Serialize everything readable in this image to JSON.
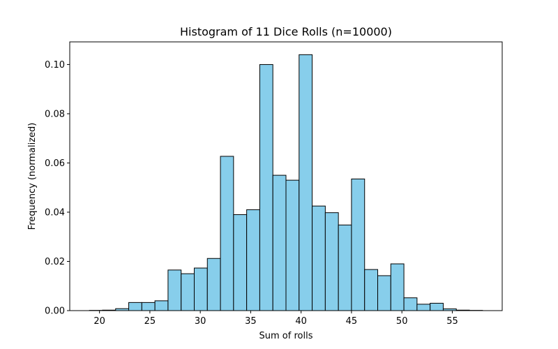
{
  "chart_data": {
    "type": "bar",
    "title": "Histogram of 11 Dice Rolls (n=10000)",
    "xlabel": "Sum of rolls",
    "ylabel": "Frequency (normalized)",
    "xlim": [
      17.05,
      59.95
    ],
    "ylim": [
      0,
      0.1092
    ],
    "xticks": [
      20,
      25,
      30,
      35,
      40,
      45,
      50,
      55
    ],
    "yticks": [
      0.0,
      0.02,
      0.04,
      0.06,
      0.08,
      0.1
    ],
    "xtick_labels": [
      "20",
      "25",
      "30",
      "35",
      "40",
      "45",
      "50",
      "55"
    ],
    "ytick_labels": [
      "0.00",
      "0.02",
      "0.04",
      "0.06",
      "0.08",
      "0.10"
    ],
    "bin_edges": [
      19.0,
      20.3,
      21.6,
      22.9,
      24.2,
      25.5,
      26.8,
      28.1,
      29.4,
      30.7,
      32.0,
      33.3,
      34.6,
      35.9,
      37.2,
      38.5,
      39.8,
      41.1,
      42.4,
      43.7,
      45.0,
      46.3,
      47.6,
      48.9,
      50.2,
      51.5,
      52.8,
      54.1,
      55.4,
      56.7,
      58.0
    ],
    "values": [
      0.0001,
      0.0002,
      0.0008,
      0.0033,
      0.0033,
      0.004,
      0.0165,
      0.015,
      0.0173,
      0.0212,
      0.0627,
      0.039,
      0.041,
      0.1,
      0.055,
      0.053,
      0.104,
      0.0425,
      0.0398,
      0.0348,
      0.0535,
      0.0167,
      0.0142,
      0.019,
      0.0052,
      0.0026,
      0.003,
      0.0007,
      0.0002,
      0.0001
    ],
    "bar_color": "#87ceeb",
    "edge_color": "#000000",
    "grid": false,
    "legend": "none"
  }
}
